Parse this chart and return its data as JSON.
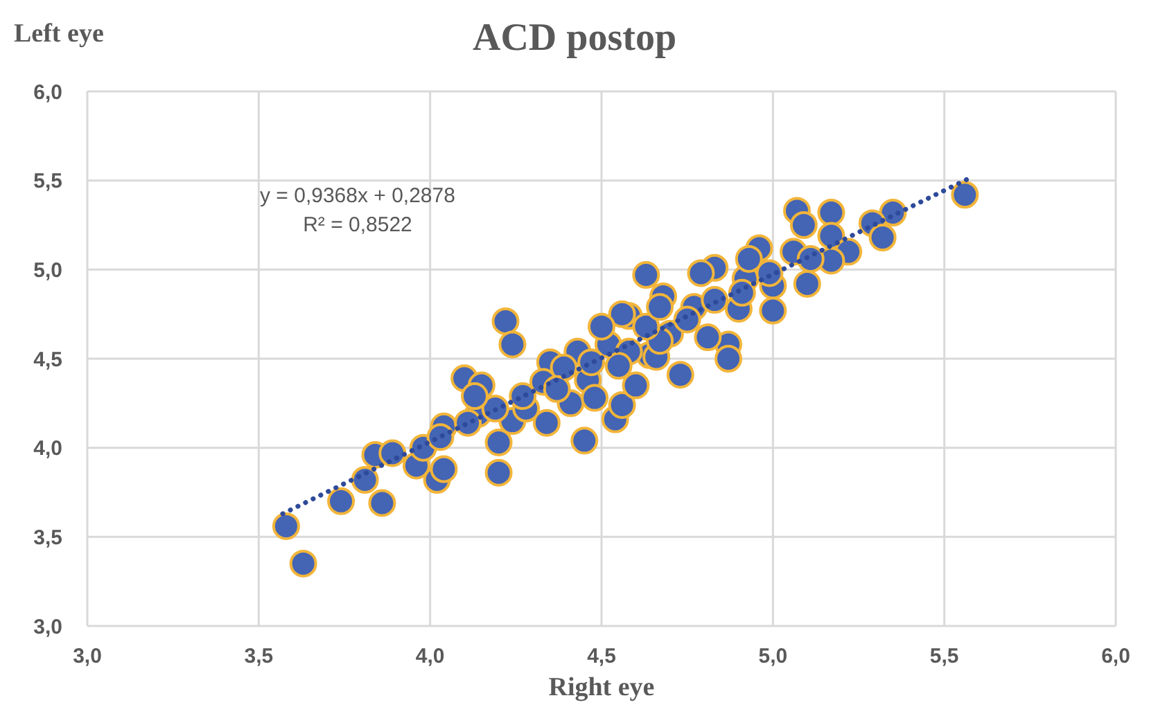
{
  "chart_data": {
    "type": "scatter",
    "title": "ACD postop",
    "xlabel": "Right eye",
    "ylabel": "Left eye",
    "annotations": [
      "y = 0,9368x + 0,2878",
      "R² = 0,8522"
    ],
    "xlim": [
      3.0,
      6.0
    ],
    "ylim": [
      3.0,
      6.0
    ],
    "xticks": [
      {
        "value": 3.0,
        "label": "3,0"
      },
      {
        "value": 3.5,
        "label": "3,5"
      },
      {
        "value": 4.0,
        "label": "4,0"
      },
      {
        "value": 4.5,
        "label": "4,5"
      },
      {
        "value": 5.0,
        "label": "5,0"
      },
      {
        "value": 5.5,
        "label": "5,5"
      },
      {
        "value": 6.0,
        "label": "6,0"
      }
    ],
    "yticks": [
      {
        "value": 3.0,
        "label": "3,0"
      },
      {
        "value": 3.5,
        "label": "3,5"
      },
      {
        "value": 4.0,
        "label": "4,0"
      },
      {
        "value": 4.5,
        "label": "4,5"
      },
      {
        "value": 5.0,
        "label": "5,0"
      },
      {
        "value": 5.5,
        "label": "5,5"
      },
      {
        "value": 6.0,
        "label": "6,0"
      }
    ],
    "grid": true,
    "legend": false,
    "series": [
      {
        "marker": "circle",
        "color": "#4464b4",
        "x": [
          3.58,
          3.63,
          3.74,
          3.86,
          3.81,
          3.84,
          3.89,
          3.96,
          4.02,
          4.04,
          4.2,
          4.45,
          4.22,
          3.98,
          4.04,
          4.14,
          4.1,
          4.15,
          4.24,
          4.2,
          4.28,
          4.34,
          4.35,
          4.24,
          4.46,
          4.41,
          4.48,
          4.54,
          4.56,
          4.6,
          4.52,
          4.58,
          4.64,
          5.56,
          5.35,
          5.29,
          5.32,
          5.17,
          5.07,
          5.09,
          5.17,
          5.22,
          5.17,
          4.96,
          5.06,
          5.1,
          5.0,
          4.92,
          4.83,
          4.79,
          4.63,
          4.68,
          4.77,
          4.9,
          5.0,
          4.87,
          4.87,
          4.73,
          4.81,
          4.7,
          4.66,
          4.58,
          4.56,
          4.5,
          4.67,
          4.75,
          4.55,
          4.43,
          4.33,
          4.27,
          4.19,
          4.11,
          4.03,
          4.39,
          4.47,
          4.63,
          4.91,
          4.83,
          4.99,
          4.93,
          5.11,
          4.67,
          4.37,
          4.13
        ],
        "values": [
          3.56,
          3.35,
          3.7,
          3.69,
          3.82,
          3.96,
          3.97,
          3.9,
          3.82,
          3.88,
          3.86,
          4.04,
          4.71,
          4.0,
          4.12,
          4.19,
          4.39,
          4.35,
          4.15,
          4.03,
          4.22,
          4.14,
          4.48,
          4.58,
          4.38,
          4.25,
          4.28,
          4.16,
          4.24,
          4.35,
          4.58,
          4.74,
          4.52,
          5.42,
          5.32,
          5.26,
          5.18,
          5.32,
          5.33,
          5.25,
          5.19,
          5.1,
          5.05,
          5.12,
          5.1,
          4.92,
          4.91,
          4.95,
          5.01,
          4.98,
          4.97,
          4.85,
          4.79,
          4.78,
          4.77,
          4.58,
          4.5,
          4.41,
          4.62,
          4.64,
          4.51,
          4.54,
          4.75,
          4.68,
          4.6,
          4.72,
          4.46,
          4.54,
          4.37,
          4.29,
          4.22,
          4.14,
          4.06,
          4.45,
          4.48,
          4.68,
          4.87,
          4.83,
          4.98,
          5.06,
          5.06,
          4.79,
          4.33,
          4.29
        ]
      },
      {
        "type": "line",
        "marker": "none",
        "color": "#2e4a9a",
        "line_style": "dotted",
        "x": [
          3.57,
          5.57
        ],
        "values": [
          3.63,
          5.51
        ]
      }
    ]
  }
}
